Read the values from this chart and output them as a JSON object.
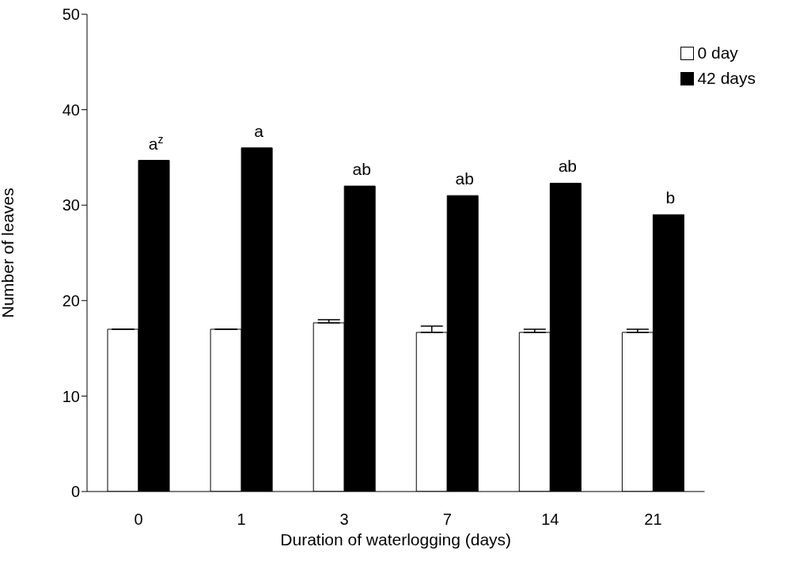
{
  "chart_data": {
    "type": "bar",
    "xlabel": "Duration of waterlogging (days)",
    "ylabel": "Number of leaves",
    "categories": [
      "0",
      "1",
      "3",
      "7",
      "14",
      "21"
    ],
    "series": [
      {
        "name": "0 day",
        "color": "#ffffff",
        "values": [
          17.0,
          17.0,
          17.67,
          16.67,
          16.67,
          16.67
        ],
        "errors": [
          null,
          null,
          [
            17.67,
            18.0
          ],
          [
            16.67,
            17.33
          ],
          [
            16.67,
            17.0
          ],
          [
            16.67,
            17.0
          ]
        ]
      },
      {
        "name": "42 days",
        "color": "#000000",
        "values": [
          34.7,
          36.0,
          32.0,
          31.0,
          32.3,
          29.0
        ]
      }
    ],
    "ylim": [
      0,
      50
    ],
    "yticks": [
      0,
      10,
      20,
      30,
      40,
      50
    ],
    "grid": false,
    "legend": "top right",
    "annotations": [
      {
        "text": "a$^{z}$",
        "x": "0",
        "y": 34.7
      },
      {
        "text": "a",
        "x": "1",
        "y": 36.0
      },
      {
        "text": "ab",
        "x": "3",
        "y": 32.0
      },
      {
        "text": "ab",
        "x": "7",
        "y": 31.0
      },
      {
        "text": "ab",
        "x": "14",
        "y": 32.3
      },
      {
        "text": "b",
        "x": "21",
        "y": 29.0
      }
    ]
  }
}
